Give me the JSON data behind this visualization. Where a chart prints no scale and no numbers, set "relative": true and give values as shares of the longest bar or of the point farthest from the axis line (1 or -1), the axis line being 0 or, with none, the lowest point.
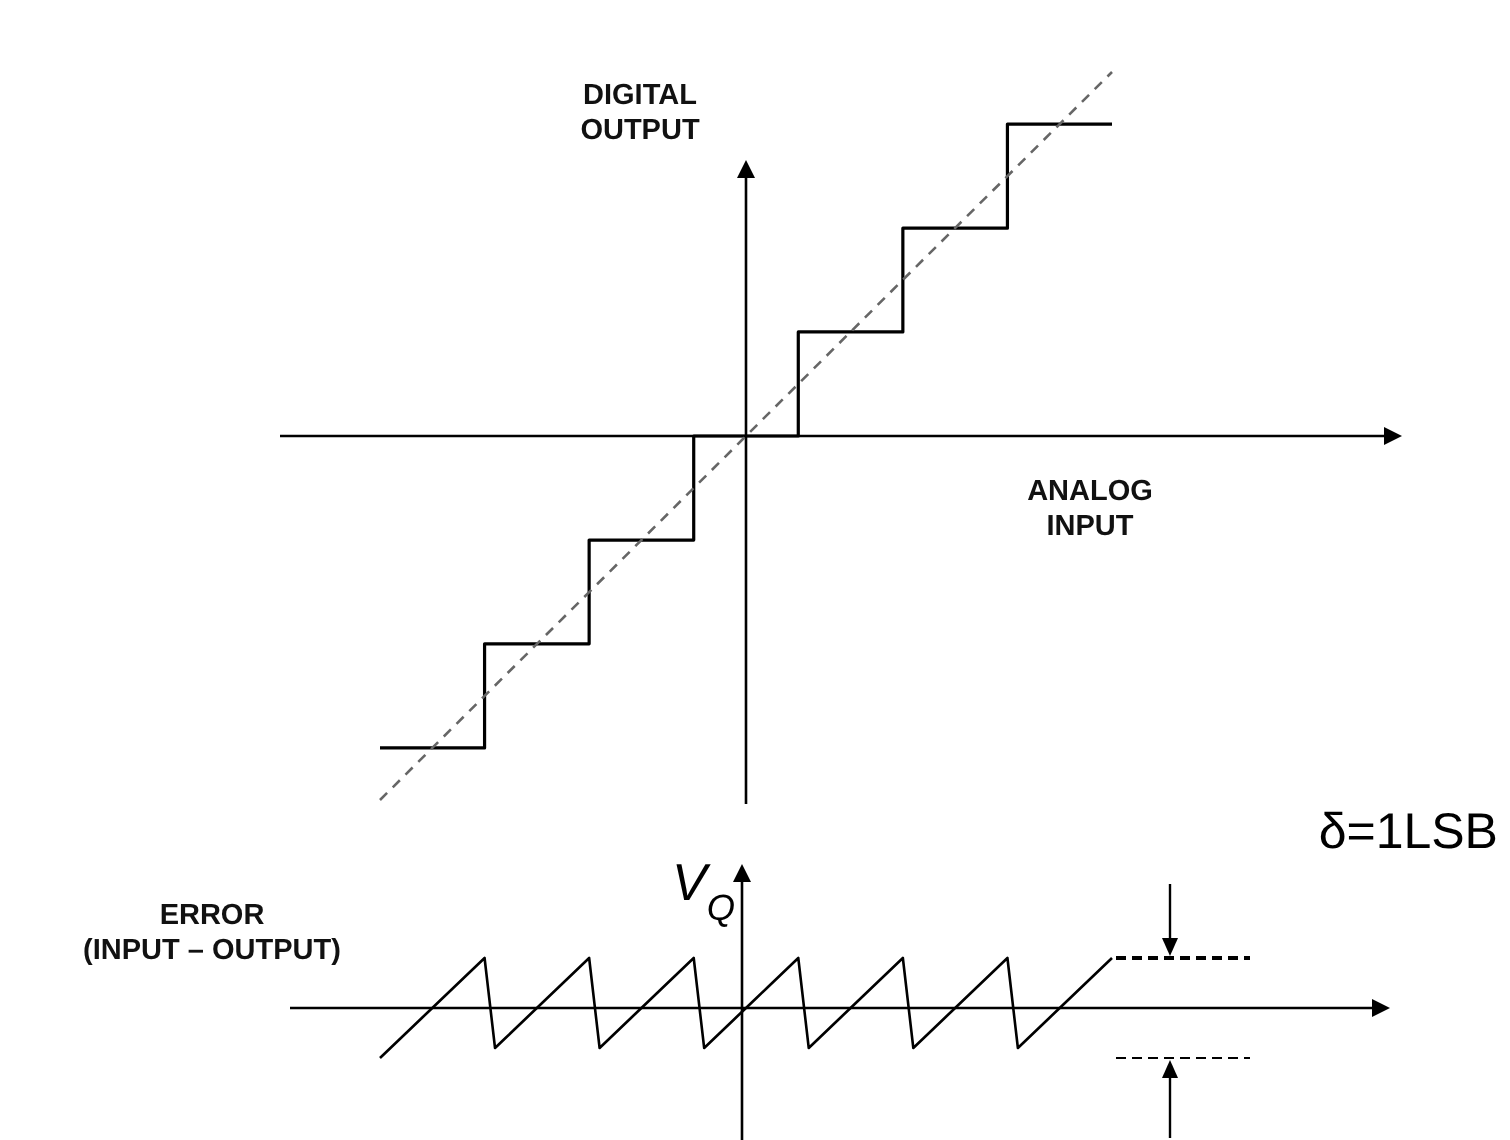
{
  "chart_data": [
    {
      "type": "step",
      "xlabel": "ANALOG INPUT",
      "ylabel": "DIGITAL OUTPUT",
      "relative": true,
      "categories": [
        null,
        null,
        null,
        null,
        null,
        null,
        null,
        null
      ],
      "series": [
        {
          "color": "#000000",
          "values": [
            -0.857,
            -0.571,
            -0.286,
            0,
            0.286,
            0.571,
            0.857,
            0.857
          ]
        },
        {
          "type": "line",
          "color": "#666666",
          "line_style": "dashed",
          "values": [
            -1,
            -0.714,
            -0.429,
            -0.143,
            0.143,
            0.429,
            0.714,
            1
          ]
        }
      ]
    },
    {
      "type": "line",
      "ylabel": "V$_{Q}$",
      "relative": true,
      "categories": [
        null,
        null,
        null,
        null,
        null,
        null,
        null,
        null,
        null,
        null,
        null,
        null,
        null,
        null,
        null,
        null,
        null,
        null,
        null,
        null,
        null,
        null,
        null,
        null,
        null,
        null,
        null,
        null,
        null,
        null,
        null,
        null,
        null,
        null,
        null,
        null,
        null,
        null,
        null,
        null,
        null,
        null,
        null,
        null,
        null,
        null,
        null,
        null,
        null,
        null,
        null,
        null,
        null,
        null,
        null,
        null,
        null,
        null,
        null,
        null,
        null,
        null,
        null,
        null,
        null,
        null,
        null,
        null,
        null,
        null,
        null
      ],
      "annotations": [
        "ERROR\n(INPUT – OUTPUT)",
        "δ=1LSB"
      ],
      "series": [
        {
          "color": "#000000",
          "values": [
            -1,
            -0.8,
            -0.6,
            -0.4,
            -0.2,
            0,
            0.2,
            0.4,
            0.6,
            0.8,
            1,
            -0.8,
            -0.6,
            -0.4,
            -0.2,
            0,
            0.2,
            0.4,
            0.6,
            0.8,
            1,
            -0.8,
            -0.6,
            -0.4,
            -0.2,
            0,
            0.2,
            0.4,
            0.6,
            0.8,
            1,
            -0.8,
            -0.6,
            -0.4,
            -0.2,
            0,
            0.2,
            0.4,
            0.6,
            0.8,
            1,
            -0.8,
            -0.6,
            -0.4,
            -0.2,
            0,
            0.2,
            0.4,
            0.6,
            0.8,
            1,
            -0.8,
            -0.6,
            -0.4,
            -0.2,
            0,
            0.2,
            0.4,
            0.6,
            0.8,
            1,
            -0.8,
            -0.6,
            -0.4,
            -0.2,
            0,
            0.2,
            0.4,
            0.6,
            0.8,
            1
          ]
        }
      ]
    }
  ]
}
